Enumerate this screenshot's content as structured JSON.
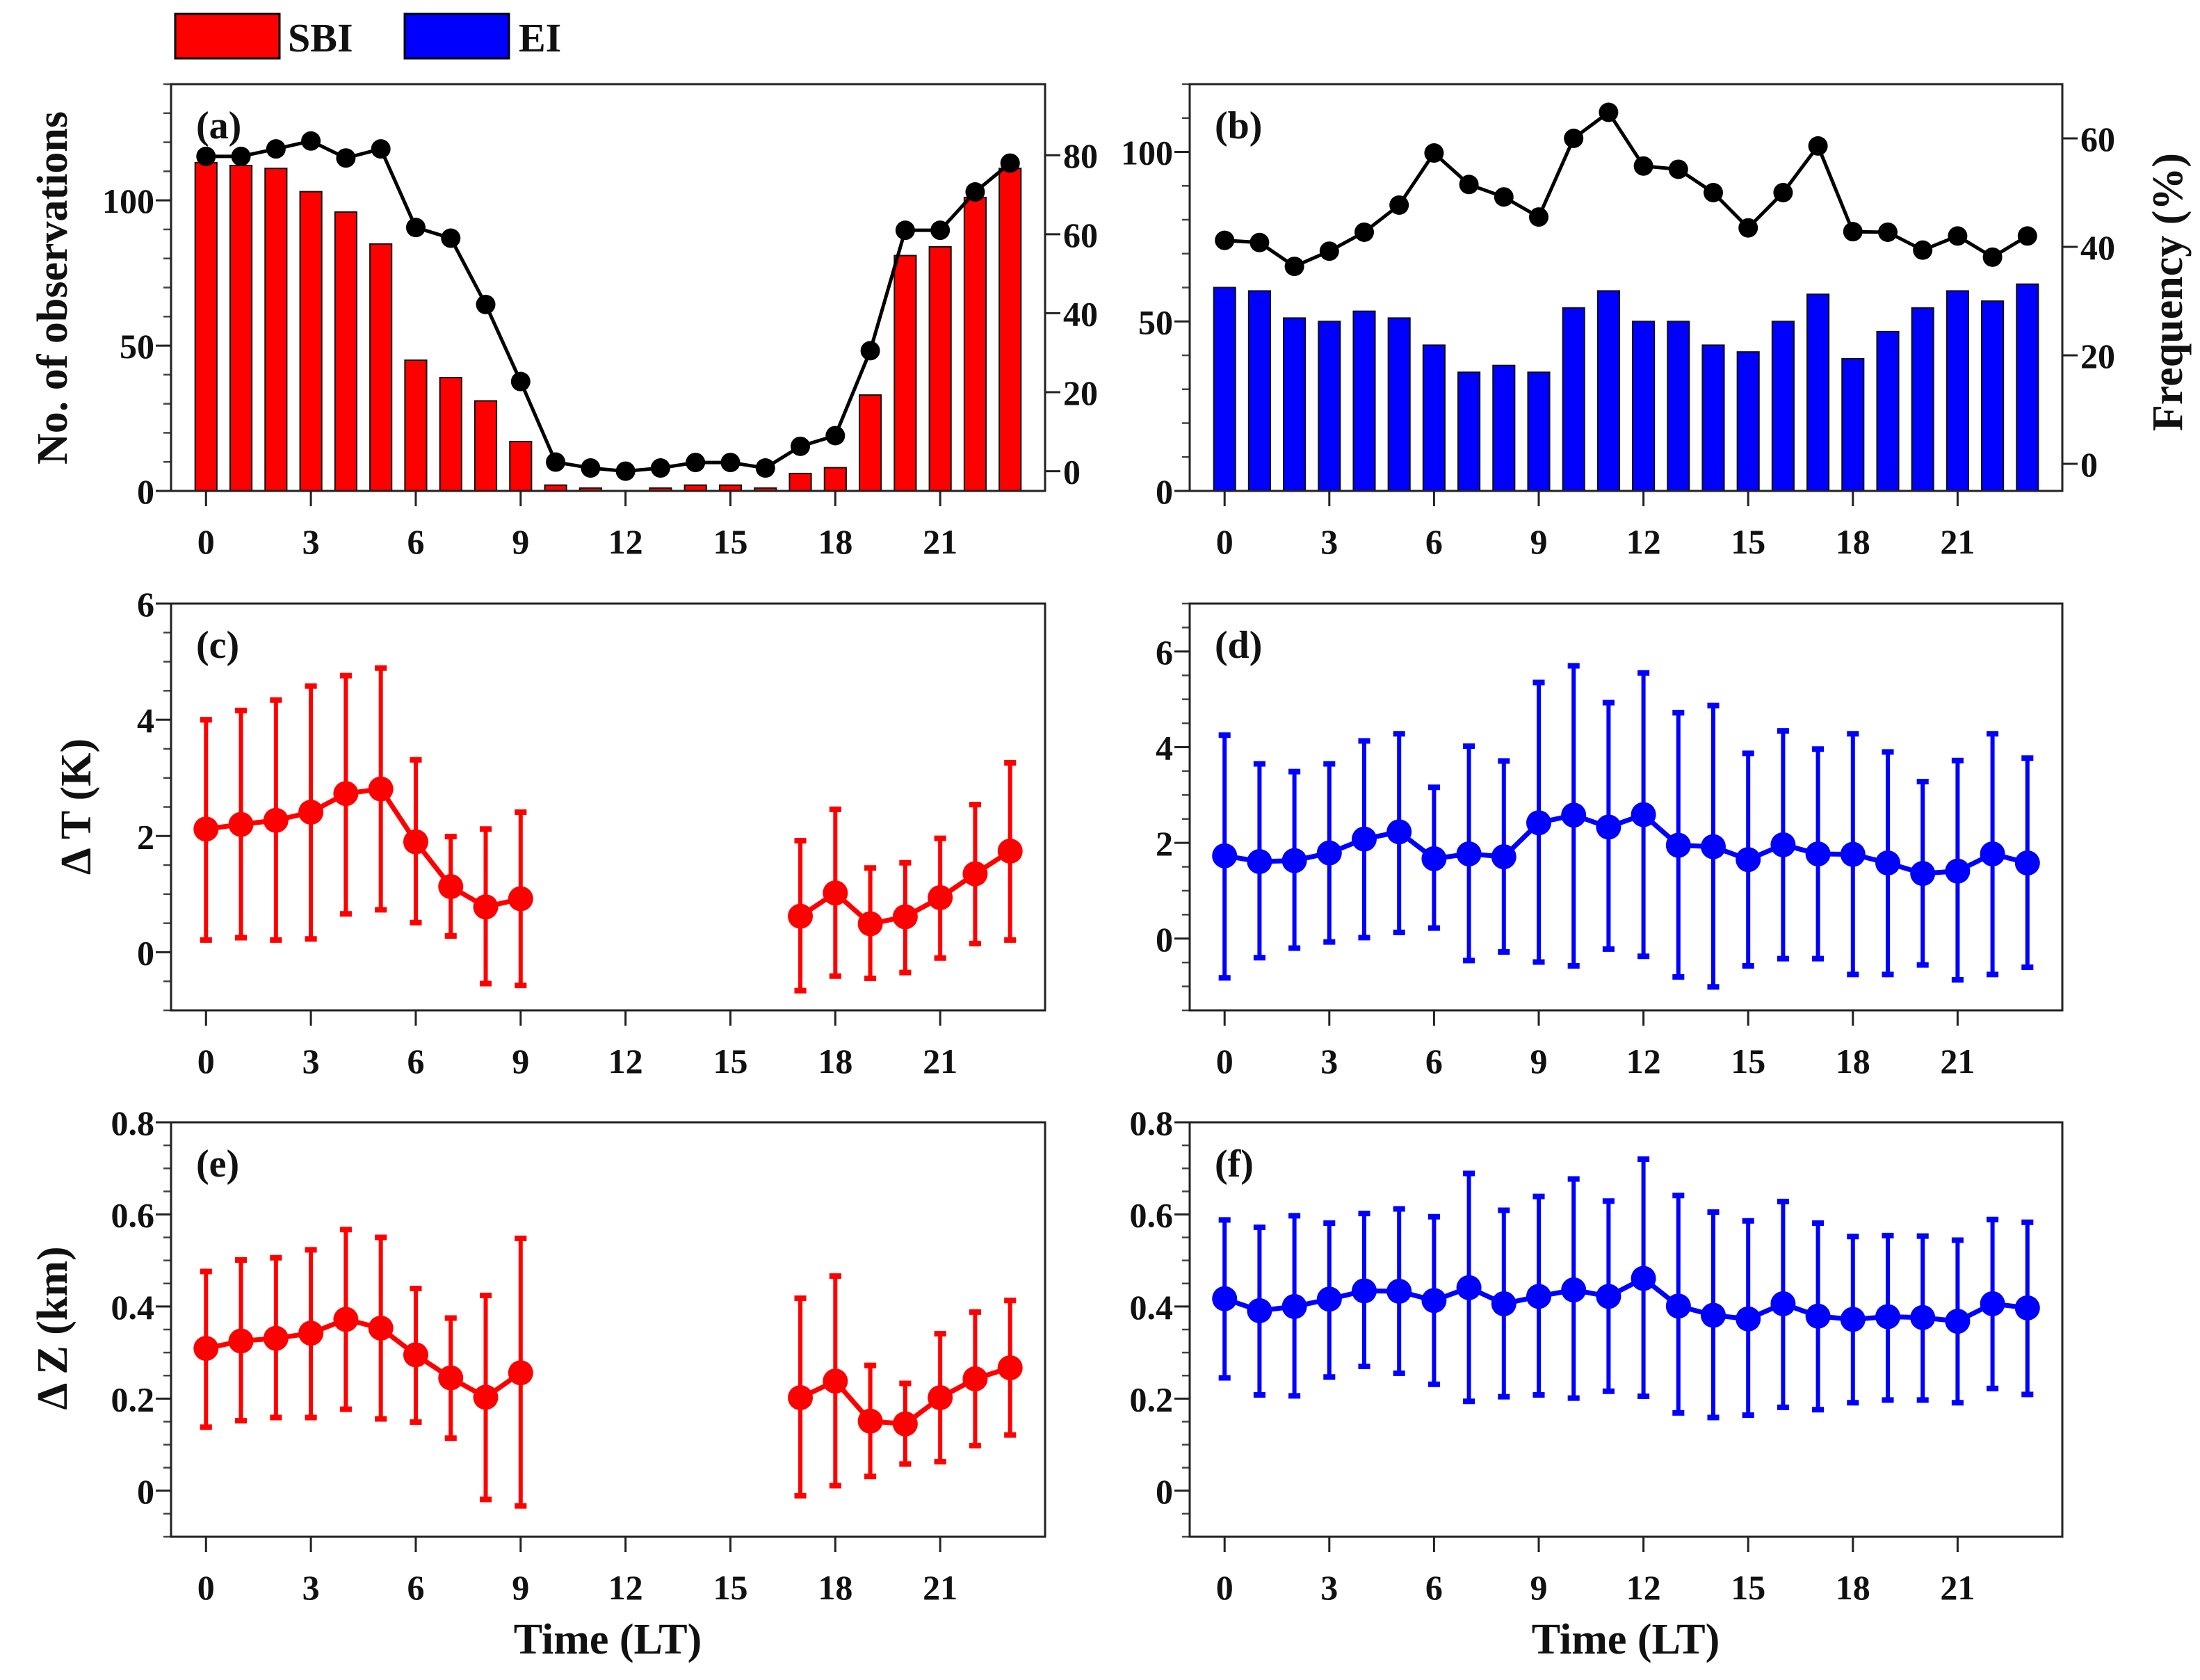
{
  "legend": {
    "items": [
      {
        "label": "SBI",
        "color": "#ff0000"
      },
      {
        "label": "EI",
        "color": "#0000ff"
      }
    ]
  },
  "labels": {
    "ylabel_count": "No. of observations",
    "ylabel_freq": "Frequency (%)",
    "ylabel_dT": "Δ T (K)",
    "ylabel_dZ": "Δ Z (km)",
    "xlabel_left": "Time (LT)",
    "xlabel_right": "Time (LT)"
  },
  "chart_data": {
    "type": "bar+line+errorbar",
    "xlim": [
      -1,
      24
    ],
    "xticks": [
      "0",
      "3",
      "6",
      "9",
      "12",
      "15",
      "18",
      "21"
    ],
    "panels": [
      {
        "id": "a",
        "label": "(a)",
        "type": "bar+line",
        "ylim": [
          0,
          140
        ],
        "yticks": [
          "0",
          "50",
          "100"
        ],
        "yminor": 10,
        "y2lim": [
          -5,
          98
        ],
        "y2ticks": [
          "0",
          "20",
          "40",
          "60",
          "80"
        ],
        "bar_color": "#ff0000",
        "hours": [
          0,
          1,
          2,
          3,
          4,
          5,
          6,
          7,
          8,
          9,
          10,
          11,
          12,
          13,
          14,
          15,
          16,
          17,
          18,
          19,
          20,
          21,
          22,
          23
        ],
        "bars": [
          113,
          112,
          111,
          103,
          96,
          85,
          45,
          39,
          31,
          17,
          2,
          1,
          0,
          1,
          2,
          2,
          1,
          6,
          8,
          33,
          81,
          84,
          101,
          111
        ],
        "line_color": "#000000",
        "line": [
          79.7,
          79.7,
          81.6,
          83.6,
          79.3,
          81.6,
          61.7,
          59,
          42.2,
          22.7,
          2.3,
          0.8,
          0,
          0.8,
          2.2,
          2.2,
          0.8,
          6.3,
          9,
          30.5,
          61,
          61,
          70.7,
          78
        ]
      },
      {
        "id": "b",
        "label": "(b)",
        "type": "bar+line",
        "ylim": [
          0,
          120
        ],
        "yticks": [
          "0",
          "50",
          "100"
        ],
        "yminor": 10,
        "y2lim": [
          -5,
          70
        ],
        "y2ticks": [
          "0",
          "20",
          "40",
          "60"
        ],
        "bar_color": "#0000ff",
        "hours": [
          0,
          1,
          2,
          3,
          4,
          5,
          6,
          7,
          8,
          9,
          10,
          11,
          12,
          13,
          14,
          15,
          16,
          17,
          18,
          19,
          20,
          21,
          22,
          23
        ],
        "bars": [
          60,
          59,
          51,
          50,
          53,
          51,
          43,
          35,
          37,
          35,
          54,
          59,
          50,
          50,
          43,
          41,
          50,
          58,
          39,
          47,
          54,
          59,
          56,
          61
        ],
        "line_color": "#000000",
        "line": [
          41.2,
          40.8,
          36.4,
          39.2,
          42.7,
          47.7,
          57.3,
          51.5,
          49.2,
          45.5,
          60,
          64.8,
          54.9,
          54.3,
          50,
          43.5,
          50,
          58.6,
          42.8,
          42.7,
          39.4,
          42,
          38.1,
          42
        ]
      },
      {
        "id": "c",
        "label": "(c)",
        "type": "errorbar",
        "ylim": [
          -1,
          6
        ],
        "yticks": [
          "0",
          "2",
          "4",
          "6"
        ],
        "ytick_vals": [
          0,
          2,
          4,
          6
        ],
        "yminor": 0.5,
        "color": "#ff0000",
        "hours": [
          0,
          1,
          2,
          3,
          4,
          5,
          6,
          7,
          8,
          9,
          17,
          18,
          19,
          20,
          21,
          22,
          23
        ],
        "mean": [
          2.12,
          2.2,
          2.27,
          2.41,
          2.73,
          2.81,
          1.9,
          1.13,
          0.78,
          0.92,
          0.62,
          1.02,
          0.49,
          0.61,
          0.94,
          1.35,
          1.74
        ],
        "upper": [
          4.0,
          4.16,
          4.34,
          4.58,
          4.76,
          4.89,
          3.31,
          1.99,
          2.12,
          2.41,
          1.92,
          2.46,
          1.45,
          1.54,
          1.96,
          2.54,
          3.26
        ],
        "lower": [
          0.21,
          0.25,
          0.21,
          0.23,
          0.66,
          0.73,
          0.51,
          0.28,
          -0.54,
          -0.57,
          -0.66,
          -0.41,
          -0.45,
          -0.35,
          -0.1,
          0.15,
          0.21
        ]
      },
      {
        "id": "d",
        "label": "(d)",
        "type": "errorbar",
        "ylim": [
          -1.5,
          7
        ],
        "yticks": [
          "0",
          "2",
          "4",
          "6"
        ],
        "ytick_vals": [
          0,
          2,
          4,
          6
        ],
        "yminor": 0.5,
        "color": "#0000ff",
        "hours": [
          0,
          1,
          2,
          3,
          4,
          5,
          6,
          7,
          8,
          9,
          10,
          11,
          12,
          13,
          14,
          15,
          16,
          17,
          18,
          19,
          20,
          21,
          22,
          23
        ],
        "mean": [
          1.73,
          1.61,
          1.63,
          1.79,
          2.08,
          2.23,
          1.67,
          1.77,
          1.71,
          2.42,
          2.58,
          2.33,
          2.59,
          1.95,
          1.92,
          1.65,
          1.96,
          1.77,
          1.76,
          1.58,
          1.36,
          1.41,
          1.77,
          1.58
        ],
        "upper": [
          4.25,
          3.65,
          3.49,
          3.65,
          4.13,
          4.28,
          3.16,
          4.02,
          3.71,
          5.35,
          5.7,
          4.93,
          5.55,
          4.72,
          4.87,
          3.87,
          4.34,
          3.96,
          4.28,
          3.9,
          3.28,
          3.72,
          4.28,
          3.77
        ],
        "lower": [
          -0.82,
          -0.4,
          -0.2,
          -0.07,
          0.02,
          0.13,
          0.22,
          -0.46,
          -0.28,
          -0.49,
          -0.57,
          -0.22,
          -0.37,
          -0.8,
          -1.01,
          -0.57,
          -0.42,
          -0.42,
          -0.75,
          -0.75,
          -0.55,
          -0.86,
          -0.75,
          -0.6
        ]
      },
      {
        "id": "e",
        "label": "(e)",
        "type": "errorbar",
        "ylim": [
          -0.1,
          0.8
        ],
        "yticks": [
          "0",
          "0.2",
          "0.4",
          "0.6",
          "0.8"
        ],
        "ytick_vals": [
          0,
          0.2,
          0.4,
          0.6,
          0.8
        ],
        "yminor": 0.05,
        "color": "#ff0000",
        "hours": [
          0,
          1,
          2,
          3,
          4,
          5,
          6,
          7,
          8,
          9,
          17,
          18,
          19,
          20,
          21,
          22,
          23
        ],
        "mean": [
          0.309,
          0.325,
          0.331,
          0.342,
          0.372,
          0.353,
          0.295,
          0.245,
          0.203,
          0.256,
          0.202,
          0.238,
          0.151,
          0.145,
          0.202,
          0.243,
          0.267
        ],
        "upper": [
          0.476,
          0.501,
          0.506,
          0.523,
          0.567,
          0.55,
          0.439,
          0.375,
          0.424,
          0.548,
          0.418,
          0.466,
          0.272,
          0.233,
          0.341,
          0.388,
          0.413
        ],
        "lower": [
          0.138,
          0.152,
          0.159,
          0.159,
          0.177,
          0.156,
          0.149,
          0.114,
          -0.019,
          -0.033,
          -0.011,
          0.011,
          0.031,
          0.058,
          0.063,
          0.098,
          0.121
        ]
      },
      {
        "id": "f",
        "label": "(f)",
        "type": "errorbar",
        "ylim": [
          -0.1,
          0.8
        ],
        "yticks": [
          "0",
          "0.2",
          "0.4",
          "0.6",
          "0.8"
        ],
        "ytick_vals": [
          0,
          0.2,
          0.4,
          0.6,
          0.8
        ],
        "yminor": 0.05,
        "color": "#0000ff",
        "hours": [
          0,
          1,
          2,
          3,
          4,
          5,
          6,
          7,
          8,
          9,
          10,
          11,
          12,
          13,
          14,
          15,
          16,
          17,
          18,
          19,
          20,
          21,
          22,
          23
        ],
        "mean": [
          0.417,
          0.391,
          0.4,
          0.416,
          0.434,
          0.433,
          0.413,
          0.441,
          0.406,
          0.422,
          0.436,
          0.422,
          0.461,
          0.401,
          0.381,
          0.373,
          0.406,
          0.379,
          0.372,
          0.378,
          0.376,
          0.368,
          0.406,
          0.397
        ],
        "upper": [
          0.588,
          0.572,
          0.597,
          0.581,
          0.602,
          0.612,
          0.595,
          0.689,
          0.609,
          0.639,
          0.677,
          0.629,
          0.72,
          0.641,
          0.605,
          0.586,
          0.628,
          0.581,
          0.552,
          0.554,
          0.553,
          0.544,
          0.589,
          0.583
        ],
        "lower": [
          0.245,
          0.208,
          0.206,
          0.247,
          0.27,
          0.255,
          0.231,
          0.194,
          0.204,
          0.208,
          0.201,
          0.216,
          0.205,
          0.169,
          0.159,
          0.164,
          0.181,
          0.176,
          0.191,
          0.197,
          0.197,
          0.191,
          0.222,
          0.209
        ]
      }
    ]
  }
}
